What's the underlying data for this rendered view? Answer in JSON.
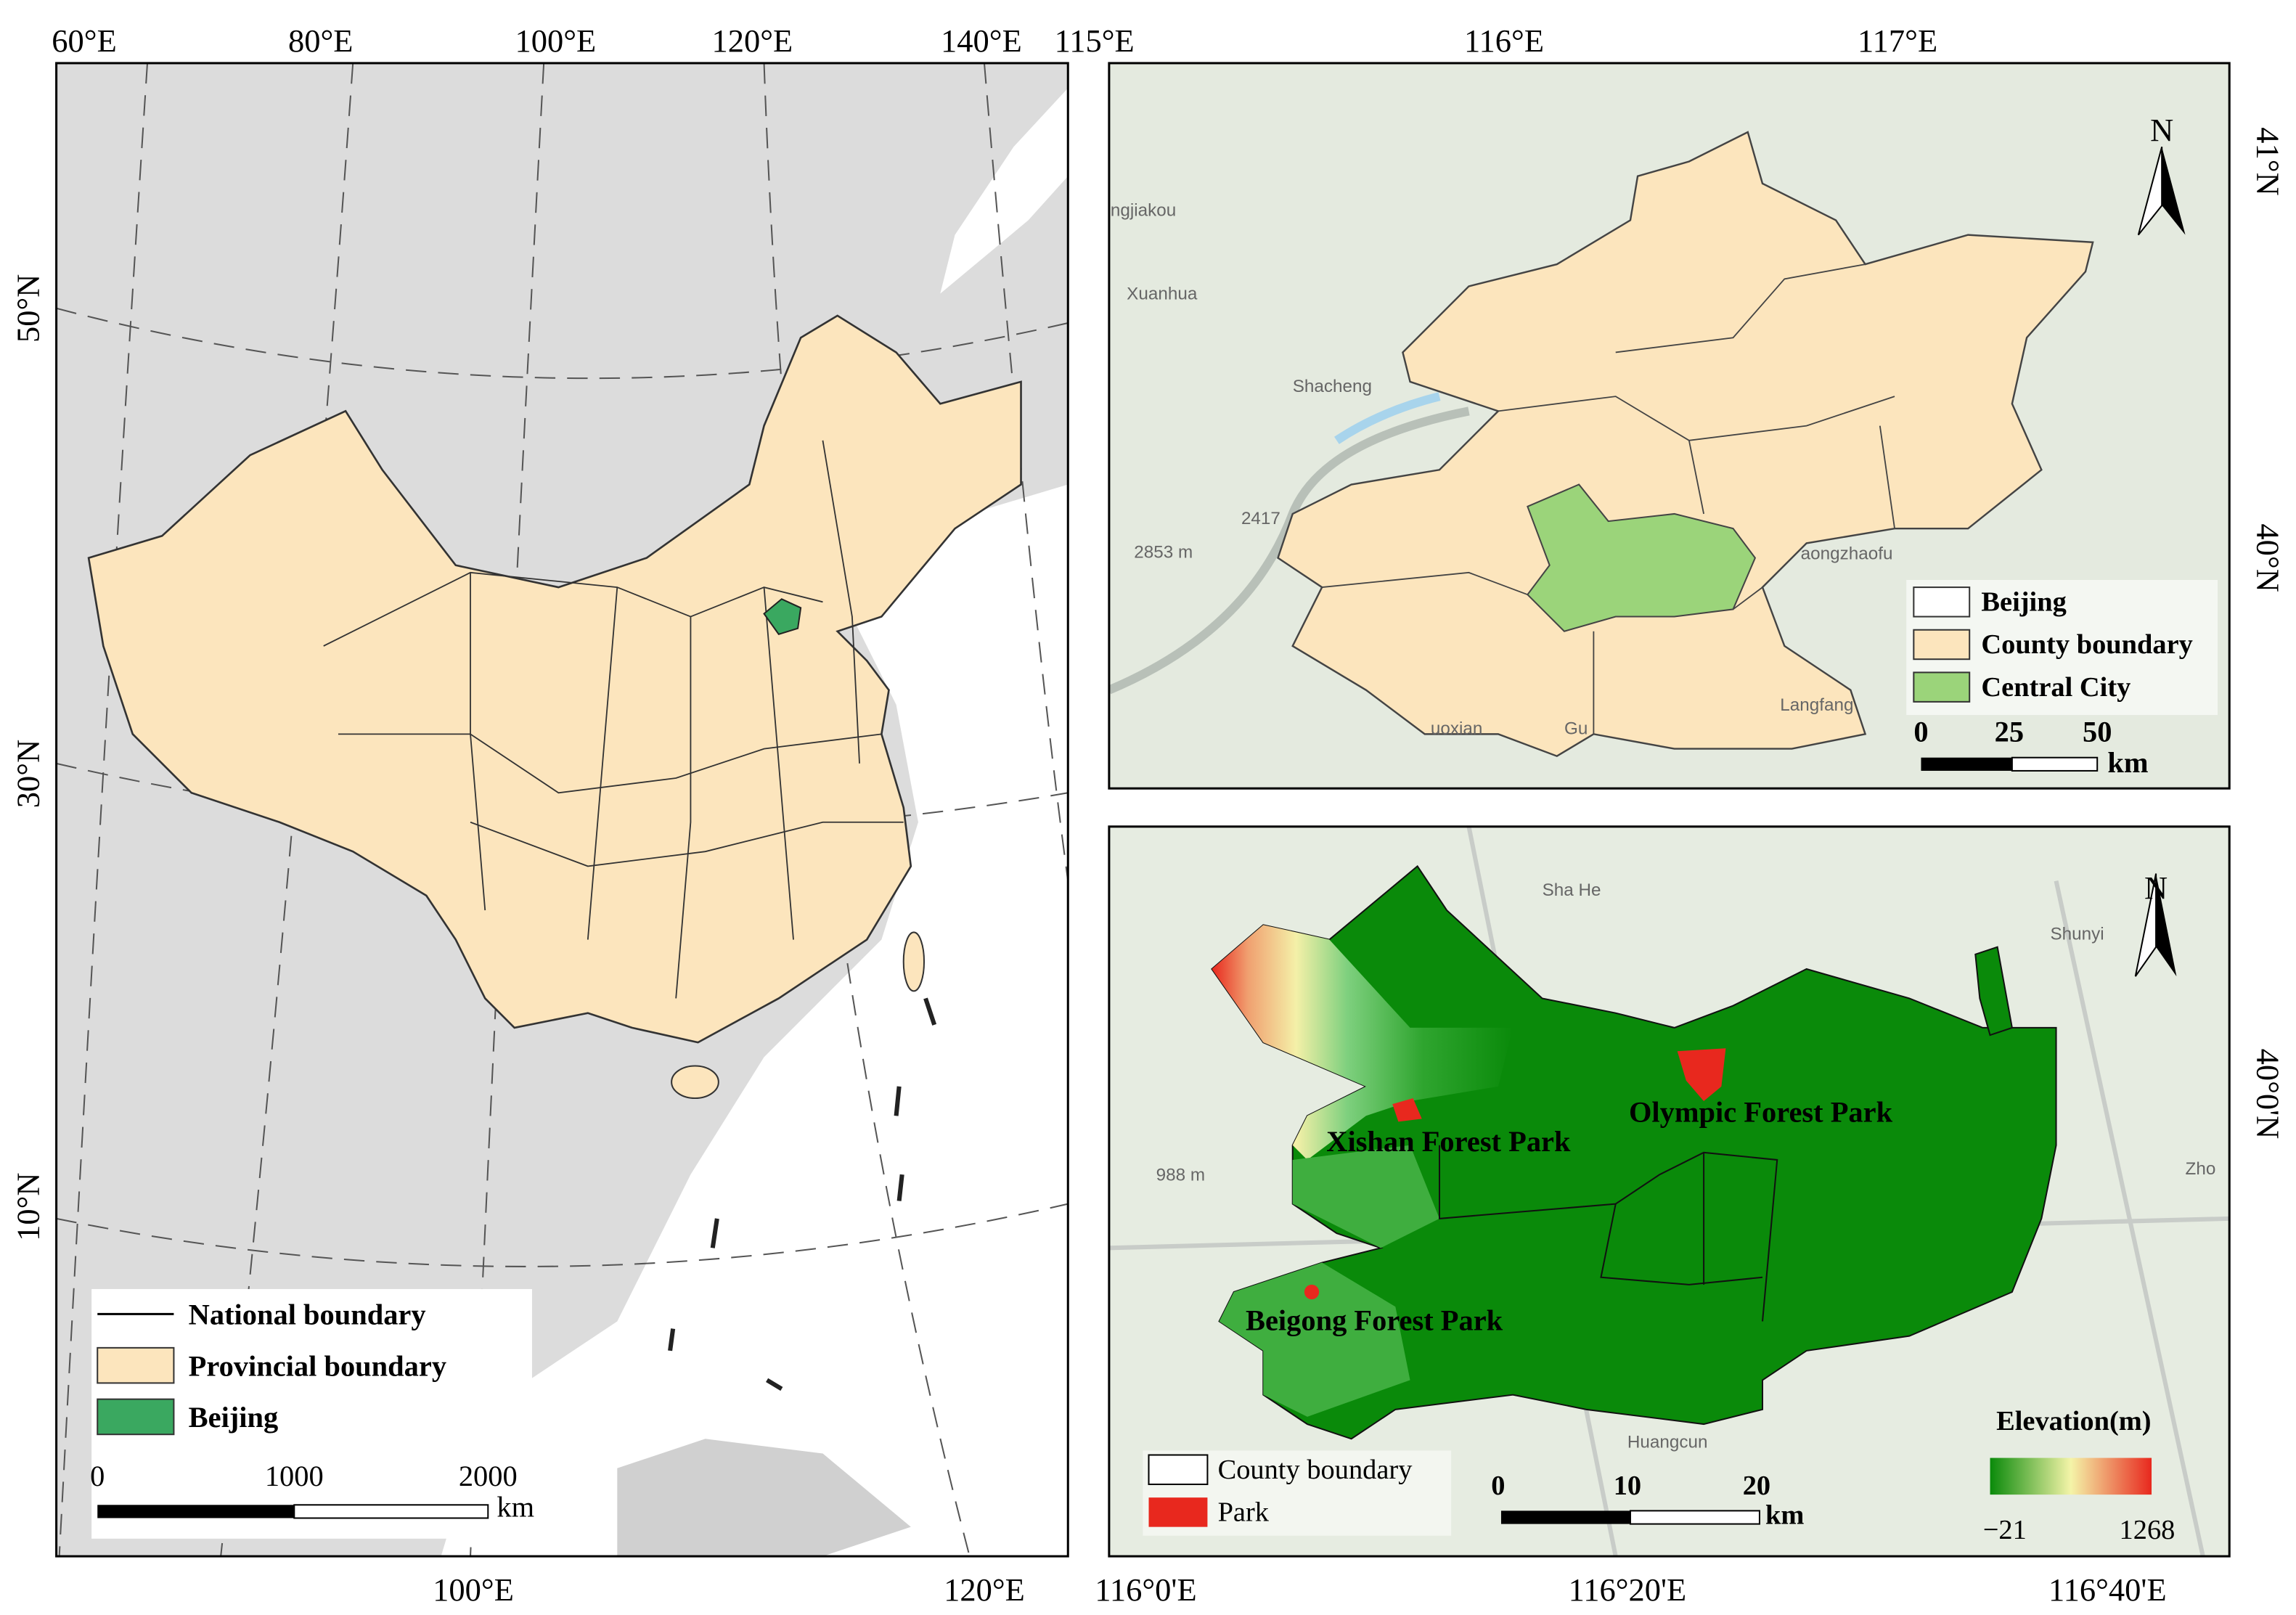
{
  "china_map": {
    "top_ticks": [
      "60°E",
      "80°E",
      "100°E",
      "120°E",
      "140°E"
    ],
    "bottom_ticks": [
      "100°E",
      "120°E"
    ],
    "left_ticks": [
      "50°N",
      "30°N",
      "10°N"
    ],
    "legend": [
      "National boundary",
      "Provincial boundary",
      "Beijing"
    ],
    "scale": {
      "labels": [
        "0",
        "1000",
        "2000"
      ],
      "unit": "km"
    }
  },
  "beijing_map": {
    "top_ticks": [
      "115°E",
      "116°E",
      "117°E"
    ],
    "right_ticks": [
      "41°N",
      "40°N"
    ],
    "north": "N",
    "places": [
      "ngjiakou",
      "Xuanhua",
      "Shacheng",
      "2417",
      "2853 m",
      "aongzhaofu",
      "Langfang",
      "uoxian",
      "Gu"
    ],
    "legend": [
      "Beijing",
      "County boundary",
      "Central City"
    ],
    "scale": {
      "labels": [
        "0",
        "25",
        "50"
      ],
      "unit": "km"
    }
  },
  "central_map": {
    "bottom_ticks": [
      "116°0'E",
      "116°20'E",
      "116°40'E"
    ],
    "right_ticks": [
      "40°0'N"
    ],
    "north": "N",
    "parks": [
      "Xishan Forest Park",
      "Olympic Forest Park",
      "Beigong Forest Park"
    ],
    "places": [
      "Shunyi",
      "988 m",
      "Huangcun",
      "Sha He",
      "Zho"
    ],
    "legend": [
      "County boundary",
      "Park"
    ],
    "scale": {
      "labels": [
        "0",
        "10",
        "20"
      ],
      "unit": "km"
    },
    "elevation": {
      "title": "Elevation(m)",
      "min_label": "−21",
      "max_label": "1268"
    }
  }
}
